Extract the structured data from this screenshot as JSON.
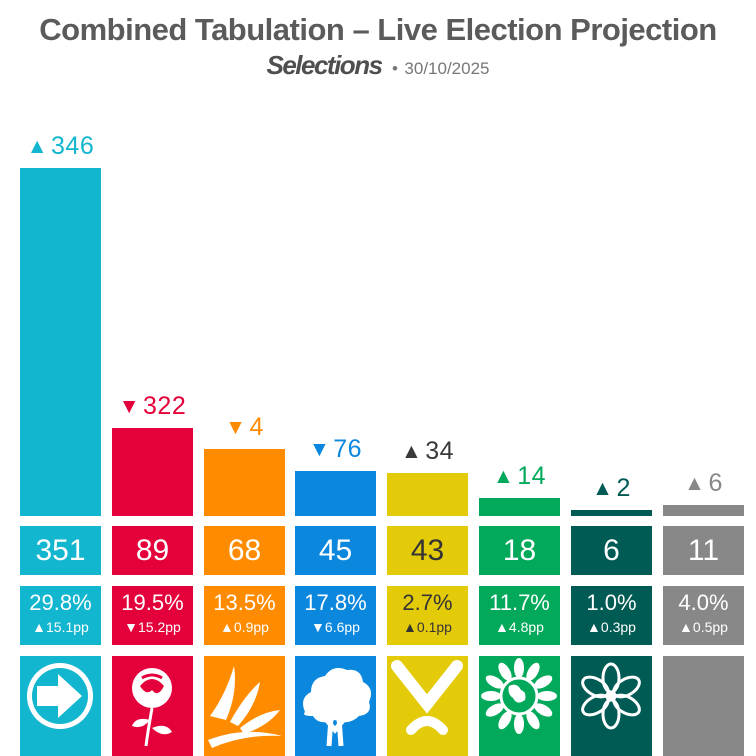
{
  "header": {
    "title": "Combined Tabulation – Live Election Projection",
    "brand": "Selections",
    "separator": "•",
    "date": "30/10/2025"
  },
  "chart_data": {
    "type": "bar",
    "title": "Combined Tabulation – Live Election Projection",
    "parties": [
      {
        "logo": "arrow-icon",
        "color": "#12b6cf",
        "seats": 351,
        "seat_change": 346,
        "seat_dir": "up",
        "change_color": "#12b6cf",
        "vote_share": "29.8%",
        "vote_change": "15.1pp",
        "vote_dir": "up"
      },
      {
        "logo": "rose-icon",
        "color": "#e4003b",
        "seats": 89,
        "seat_change": 322,
        "seat_dir": "down",
        "change_color": "#e4003b",
        "vote_share": "19.5%",
        "vote_change": "15.2pp",
        "vote_dir": "down"
      },
      {
        "logo": "bird-icon",
        "color": "#ff8c00",
        "seats": 68,
        "seat_change": 4,
        "seat_dir": "down",
        "change_color": "#ff8c00",
        "vote_share": "13.5%",
        "vote_change": "0.9pp",
        "vote_dir": "up"
      },
      {
        "logo": "tree-icon",
        "color": "#0c87de",
        "seats": 45,
        "seat_change": 76,
        "seat_dir": "down",
        "change_color": "#0c87de",
        "vote_share": "17.8%",
        "vote_change": "6.6pp",
        "vote_dir": "down"
      },
      {
        "logo": "saltire-icon",
        "color": "#e3cb0a",
        "seats": 43,
        "seat_change": 34,
        "seat_dir": "up",
        "change_color": "#3a3a3a",
        "vote_share": "2.7%",
        "vote_change": "0.1pp",
        "vote_dir": "up"
      },
      {
        "logo": "globe-icon",
        "color": "#02a95b",
        "seats": 18,
        "seat_change": 14,
        "seat_dir": "up",
        "change_color": "#02a95b",
        "vote_share": "11.7%",
        "vote_change": "4.8pp",
        "vote_dir": "up"
      },
      {
        "logo": "flower-icon",
        "color": "#005b54",
        "seats": 6,
        "seat_change": 2,
        "seat_dir": "up",
        "change_color": "#005b54",
        "vote_share": "1.0%",
        "vote_change": "0.3pp",
        "vote_dir": "up"
      },
      {
        "logo": "none",
        "color": "#888888",
        "seats": 11,
        "seat_change": 6,
        "seat_dir": "up",
        "change_color": "#888888",
        "vote_share": "4.0%",
        "vote_change": "0.5pp",
        "vote_dir": "up"
      }
    ],
    "ylim": [
      0,
      351
    ]
  },
  "arrows": {
    "up": "▲",
    "down": "▼"
  }
}
